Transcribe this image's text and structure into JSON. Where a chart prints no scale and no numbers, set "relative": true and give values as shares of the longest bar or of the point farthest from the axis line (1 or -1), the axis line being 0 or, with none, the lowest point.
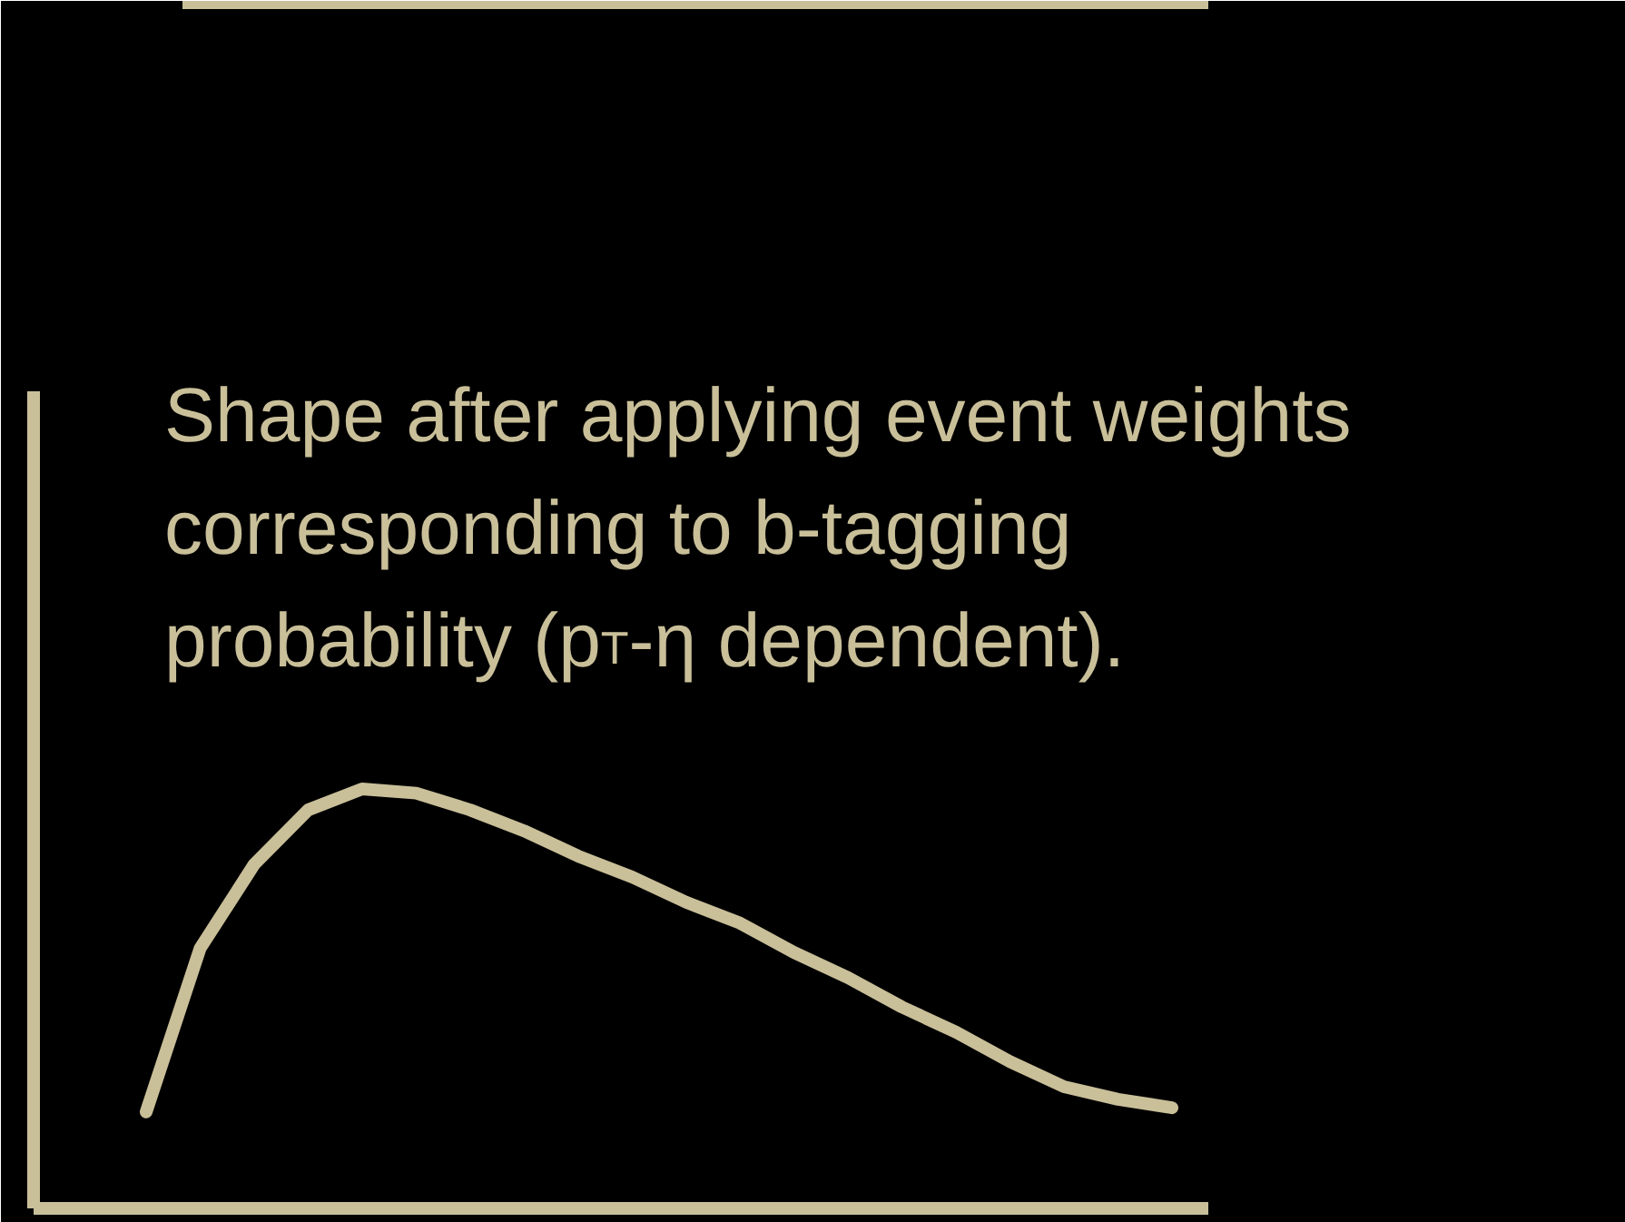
{
  "chart_data": {
    "type": "line",
    "relative": true,
    "title": "Shape after applying event weights corresponding to b-tagging probability (p$_{T}$-η dependent).",
    "categories": [
      null,
      null,
      null,
      null,
      null,
      null,
      null,
      null,
      null,
      null,
      null,
      null,
      null,
      null,
      null,
      null,
      null,
      null,
      null,
      null
    ],
    "series": [
      {
        "color": "#c9bf99",
        "values": [
          0.23,
          0.62,
          0.82,
          0.95,
          1.0,
          0.99,
          0.95,
          0.9,
          0.84,
          0.79,
          0.73,
          0.68,
          0.61,
          0.55,
          0.48,
          0.42,
          0.35,
          0.29,
          0.26,
          0.24
        ]
      }
    ],
    "marker": "none",
    "line_style": "solid",
    "grid": false
  }
}
